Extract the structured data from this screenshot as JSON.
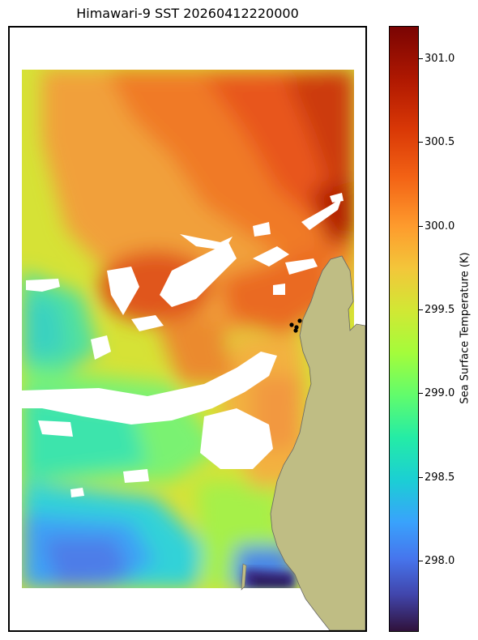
{
  "title": "Himawari-9 SST 20260412220000",
  "colorbar": {
    "label": "Sea Surface Temperature (K)",
    "ticks": [
      "298.0",
      "298.5",
      "299.0",
      "299.5",
      "300.0",
      "300.5",
      "301.0"
    ],
    "vmin": 297.55,
    "vmax": 301.2,
    "colormap": "turbo"
  },
  "map": {
    "land_color": "#bfbd84",
    "missing_color": "#ffffff",
    "markers_color": "#000000",
    "marker_count": 4
  }
}
